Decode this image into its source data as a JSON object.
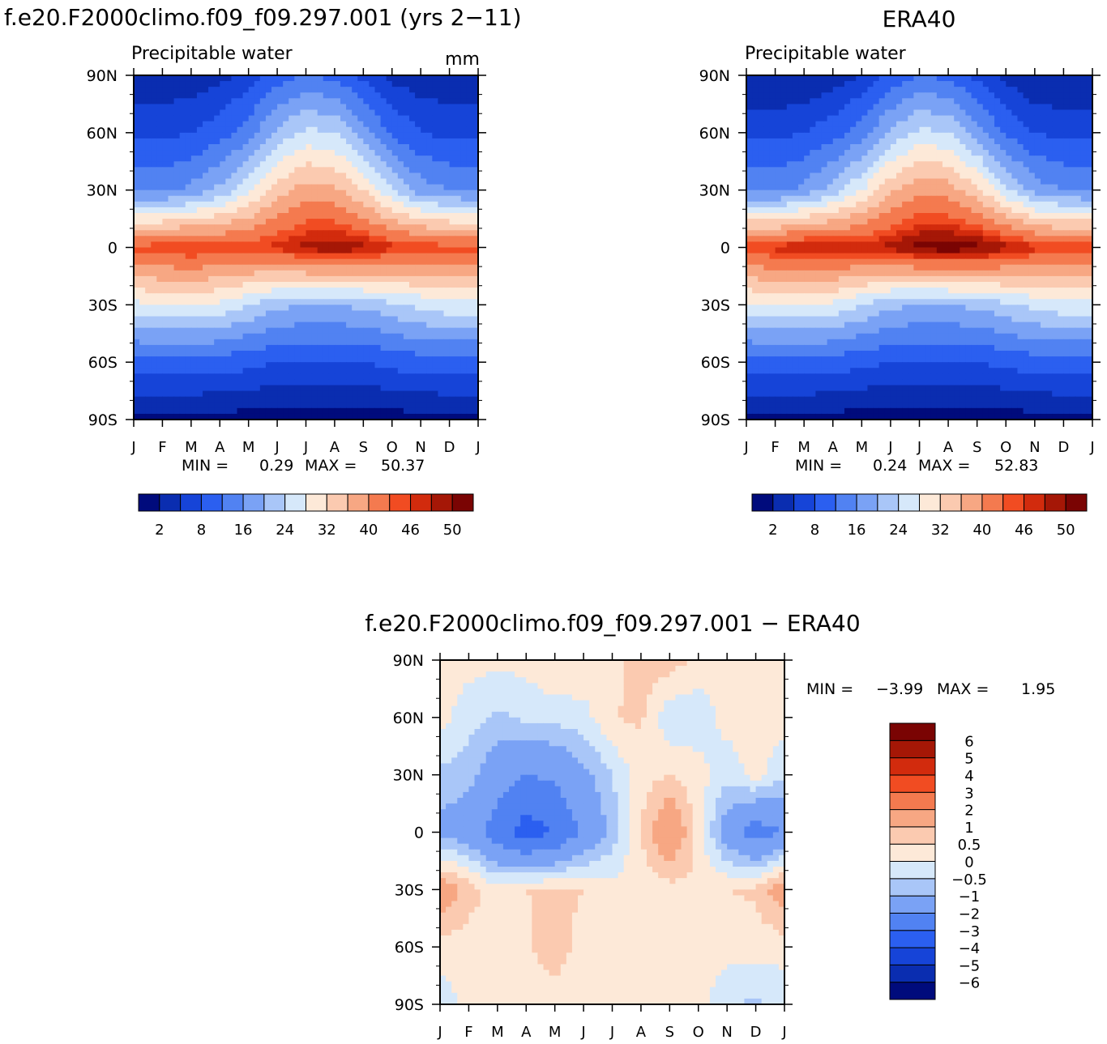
{
  "months": [
    "J",
    "F",
    "M",
    "A",
    "M",
    "J",
    "J",
    "A",
    "S",
    "O",
    "N",
    "D",
    "J"
  ],
  "lat_ticks": [
    "90N",
    "60N",
    "30N",
    "0",
    "30S",
    "60S",
    "90S"
  ],
  "model_panel": {
    "title": "f.e20.F2000climo.f09_f09.297.001 (yrs 2−11)",
    "variable": "Precipitable water",
    "units": "mm",
    "min_label": "MIN =",
    "min_value": "0.29",
    "max_label": "MAX =",
    "max_value": "50.37"
  },
  "obs_panel": {
    "title": "ERA40",
    "variable": "Precipitable water",
    "min_label": "MIN =",
    "min_value": "0.24",
    "max_label": "MAX =",
    "max_value": "52.83"
  },
  "diff_panel": {
    "title": "f.e20.F2000climo.f09_f09.297.001 − ERA40",
    "min_label": "MIN =",
    "min_value": "−3.99",
    "max_label": "MAX =",
    "max_value": "1.95"
  },
  "abs_colorbar": {
    "colors": [
      "#000b7c",
      "#0a2db0",
      "#1644d8",
      "#2b5ff0",
      "#5182f2",
      "#7aa2f5",
      "#a9c6f8",
      "#d6e8fa",
      "#fde9d8",
      "#fbcab0",
      "#f7a783",
      "#f47a4f",
      "#f14c22",
      "#d22b0d",
      "#a51706",
      "#7a0403"
    ],
    "labels": [
      "2",
      "8",
      "16",
      "24",
      "32",
      "40",
      "46",
      "50"
    ]
  },
  "diff_colorbar": {
    "colors": [
      "#000b7c",
      "#0a2db0",
      "#1644d8",
      "#2b5ff0",
      "#5182f2",
      "#7aa2f5",
      "#a9c6f8",
      "#d6e8fa",
      "#fde9d8",
      "#fbcab0",
      "#f7a783",
      "#f47a4f",
      "#f14c22",
      "#d22b0d",
      "#a51706",
      "#7a0403"
    ],
    "labels": [
      "−6",
      "−5",
      "−4",
      "−3",
      "−2",
      "−1",
      "−0.5",
      "0",
      "0.5",
      "1",
      "2",
      "3",
      "4",
      "5",
      "6"
    ]
  },
  "chart_data": [
    {
      "type": "heatmap",
      "title": "f.e20.F2000climo.f09_f09.297.001 (yrs 2−11)",
      "subtitle": "Precipitable water",
      "units": "mm",
      "x": [
        "J",
        "F",
        "M",
        "A",
        "M",
        "J",
        "J",
        "A",
        "S",
        "O",
        "N",
        "D",
        "J"
      ],
      "y": [
        "90N",
        "60N",
        "30N",
        "0",
        "30S",
        "60S",
        "90S"
      ],
      "levels": [
        2,
        5,
        8,
        12,
        16,
        20,
        24,
        28,
        32,
        36,
        40,
        44,
        46,
        48,
        50
      ],
      "values": [
        [
          3,
          3,
          3,
          4,
          6,
          10,
          12,
          11,
          7,
          4,
          3,
          3,
          3
        ],
        [
          7,
          7,
          8,
          10,
          14,
          21,
          25,
          24,
          18,
          11,
          8,
          7,
          7
        ],
        [
          15,
          15,
          17,
          21,
          27,
          34,
          38,
          37,
          32,
          24,
          18,
          16,
          15
        ],
        [
          45,
          46,
          47,
          46,
          46,
          47,
          49,
          50,
          49,
          47,
          46,
          45,
          45
        ],
        [
          27,
          28,
          28,
          27,
          24,
          21,
          20,
          20,
          21,
          23,
          25,
          27,
          27
        ],
        [
          10,
          10,
          10,
          10,
          9,
          8,
          8,
          8,
          8,
          9,
          10,
          10,
          10
        ],
        [
          1,
          1,
          1,
          0.8,
          0.6,
          0.5,
          0.4,
          0.4,
          0.5,
          0.6,
          0.8,
          1,
          1
        ]
      ],
      "min": 0.29,
      "max": 50.37
    },
    {
      "type": "heatmap",
      "title": "ERA40",
      "subtitle": "Precipitable water",
      "x": [
        "J",
        "F",
        "M",
        "A",
        "M",
        "J",
        "J",
        "A",
        "S",
        "O",
        "N",
        "D",
        "J"
      ],
      "y": [
        "90N",
        "60N",
        "30N",
        "0",
        "30S",
        "60S",
        "90S"
      ],
      "levels": [
        2,
        5,
        8,
        12,
        16,
        20,
        24,
        28,
        32,
        36,
        40,
        44,
        46,
        48,
        50
      ],
      "values": [
        [
          2,
          2,
          2,
          3,
          5,
          9,
          12,
          11,
          7,
          4,
          2,
          2,
          2
        ],
        [
          7,
          7,
          8,
          10,
          14,
          21,
          25,
          24,
          18,
          11,
          8,
          7,
          7
        ],
        [
          15,
          15,
          17,
          22,
          28,
          35,
          39,
          38,
          33,
          25,
          18,
          16,
          15
        ],
        [
          46,
          47,
          49,
          48,
          48,
          49,
          51,
          52,
          51,
          49,
          47,
          46,
          46
        ],
        [
          27,
          28,
          28,
          27,
          24,
          21,
          20,
          20,
          21,
          23,
          25,
          27,
          27
        ],
        [
          10,
          10,
          10,
          10,
          9,
          8,
          8,
          8,
          8,
          9,
          10,
          10,
          10
        ],
        [
          1,
          1,
          1,
          0.8,
          0.5,
          0.4,
          0.3,
          0.3,
          0.4,
          0.5,
          0.8,
          1,
          1
        ]
      ],
      "min": 0.24,
      "max": 52.83
    },
    {
      "type": "heatmap",
      "title": "f.e20.F2000climo.f09_f09.297.001 − ERA40",
      "x": [
        "J",
        "F",
        "M",
        "A",
        "M",
        "J",
        "J",
        "A",
        "S",
        "O",
        "N",
        "D",
        "J"
      ],
      "y": [
        "90N",
        "60N",
        "30N",
        "0",
        "30S",
        "60S",
        "90S"
      ],
      "levels": [
        -6,
        -5,
        -4,
        -3,
        -2,
        -1,
        -0.5,
        0,
        0.5,
        1,
        2,
        3,
        4,
        5,
        6
      ],
      "values": [
        [
          0.2,
          0.2,
          0.1,
          0.2,
          0.5,
          0.4,
          0.2,
          0.8,
          0.8,
          0.3,
          0.2,
          0.2,
          0.2
        ],
        [
          0.2,
          -0.3,
          -0.6,
          -0.4,
          -0.3,
          -0.2,
          0.5,
          0.6,
          -0.4,
          -0.3,
          0.2,
          0.2,
          0.2
        ],
        [
          -0.6,
          -0.8,
          -1.5,
          -2,
          -1.8,
          -1.2,
          -0.5,
          0.3,
          0.5,
          0.2,
          -0.3,
          0.2,
          -0.4
        ],
        [
          -1.2,
          -1.5,
          -2.5,
          -3.5,
          -3,
          -1.8,
          -0.8,
          0.5,
          1.8,
          0.3,
          -1.5,
          -2.5,
          -2
        ],
        [
          1.5,
          0.8,
          0.2,
          0.5,
          0.6,
          0.5,
          0.2,
          0.2,
          0.3,
          0.4,
          0.5,
          0.6,
          1.5
        ],
        [
          0.3,
          0.2,
          0.2,
          0.4,
          0.8,
          0.3,
          0.2,
          0.2,
          0.5,
          0.2,
          0.2,
          0.2,
          0.2
        ],
        [
          -0.3,
          0.2,
          0.2,
          0.2,
          0.2,
          0.2,
          0.2,
          0.2,
          0.2,
          0.2,
          -0.4,
          -0.6,
          -0.3
        ]
      ],
      "min": -3.99,
      "max": 1.95
    }
  ]
}
